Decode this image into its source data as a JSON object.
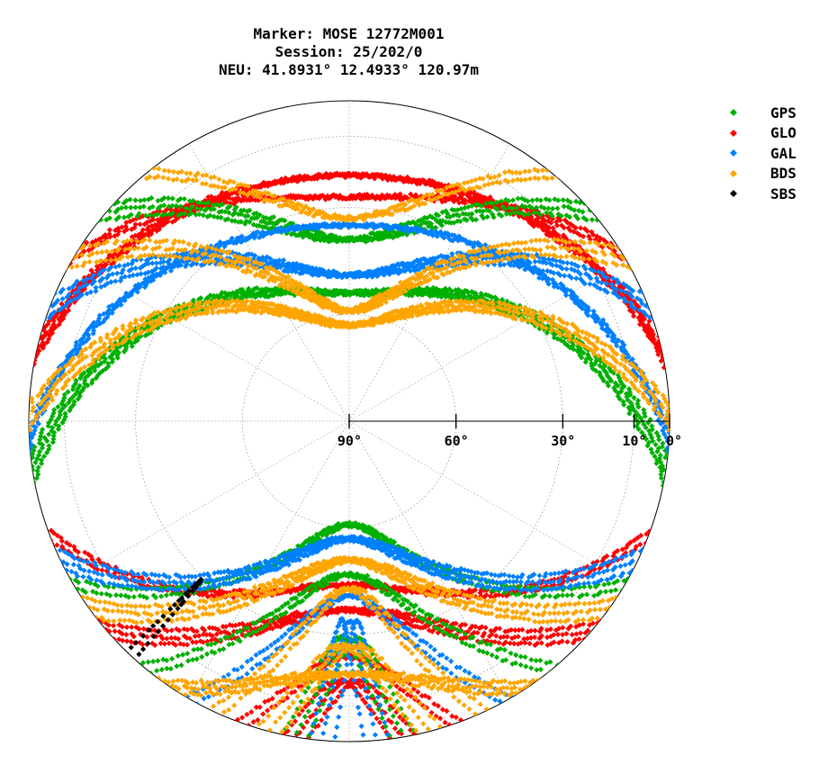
{
  "title": {
    "line1": "Marker: MOSE 12772M001",
    "line2": "Session: 25/202/0",
    "line3": "NEU: 41.8931° 12.4933° 120.97m"
  },
  "legend": [
    {
      "label": "GPS",
      "color": "#00b000",
      "icon": "diamond-marker"
    },
    {
      "label": "GLO",
      "color": "#ff0000",
      "icon": "diamond-marker"
    },
    {
      "label": "GAL",
      "color": "#0080ff",
      "icon": "diamond-marker"
    },
    {
      "label": "BDS",
      "color": "#ffa500",
      "icon": "diamond-marker"
    },
    {
      "label": "SBS",
      "color": "#000000",
      "icon": "diamond-marker"
    }
  ],
  "chart_data": {
    "type": "scatter",
    "projection": "polar skyplot (azimuth / elevation)",
    "elevation_ticks": [
      {
        "value": 90,
        "label": "90°"
      },
      {
        "value": 60,
        "label": "60°"
      },
      {
        "value": 30,
        "label": "30°"
      },
      {
        "value": 10,
        "label": "10°"
      },
      {
        "value": 0,
        "label": "0°"
      }
    ],
    "grid": true,
    "legend_position": "top-right",
    "series": [
      {
        "name": "GPS",
        "color": "#00b000"
      },
      {
        "name": "GLO",
        "color": "#ff0000"
      },
      {
        "name": "GAL",
        "color": "#0080ff"
      },
      {
        "name": "BDS",
        "color": "#ffa500"
      },
      {
        "name": "SBS",
        "color": "#000000"
      }
    ],
    "tracks": [
      {
        "system": "GLO",
        "az_start": 300,
        "az_end": 60,
        "el_max": 28,
        "spread": 2
      },
      {
        "system": "GLO",
        "az_start": 280,
        "az_end": 80,
        "el_max": 22,
        "spread": 3
      },
      {
        "system": "GLO",
        "az_start": 250,
        "az_end": 110,
        "el_max": 45,
        "spread": 2
      },
      {
        "system": "GLO",
        "az_start": 230,
        "az_end": 130,
        "el_max": 38,
        "spread": 3
      },
      {
        "system": "GLO",
        "az_start": 200,
        "az_end": 160,
        "el_max": 25,
        "spread": 2
      },
      {
        "system": "GLO",
        "az_start": 170,
        "az_end": 190,
        "el_max": 18,
        "spread": 3
      },
      {
        "system": "GPS",
        "az_start": 310,
        "az_end": 50,
        "el_max": 40,
        "spread": 3
      },
      {
        "system": "GPS",
        "az_start": 260,
        "az_end": 100,
        "el_max": 55,
        "spread": 3
      },
      {
        "system": "GPS",
        "az_start": 220,
        "az_end": 140,
        "el_max": 48,
        "spread": 2
      },
      {
        "system": "GPS",
        "az_start": 190,
        "az_end": 170,
        "el_max": 30,
        "spread": 3
      },
      {
        "system": "GPS",
        "az_start": 240,
        "az_end": 120,
        "el_max": 62,
        "spread": 2
      },
      {
        "system": "GAL",
        "az_start": 290,
        "az_end": 70,
        "el_max": 50,
        "spread": 3
      },
      {
        "system": "GAL",
        "az_start": 245,
        "az_end": 115,
        "el_max": 58,
        "spread": 3
      },
      {
        "system": "GAL",
        "az_start": 210,
        "az_end": 150,
        "el_max": 42,
        "spread": 2
      },
      {
        "system": "GAL",
        "az_start": 185,
        "az_end": 175,
        "el_max": 35,
        "spread": 3
      },
      {
        "system": "GAL",
        "az_start": 265,
        "az_end": 95,
        "el_max": 36,
        "spread": 2
      },
      {
        "system": "BDS",
        "az_start": 300,
        "az_end": 60,
        "el_max": 60,
        "spread": 3
      },
      {
        "system": "BDS",
        "az_start": 270,
        "az_end": 90,
        "el_max": 64,
        "spread": 3
      },
      {
        "system": "BDS",
        "az_start": 235,
        "az_end": 125,
        "el_max": 52,
        "spread": 3
      },
      {
        "system": "BDS",
        "az_start": 205,
        "az_end": 155,
        "el_max": 44,
        "spread": 2
      },
      {
        "system": "BDS",
        "az_start": 195,
        "az_end": 165,
        "el_max": 28,
        "spread": 3
      },
      {
        "system": "BDS",
        "az_start": 320,
        "az_end": 40,
        "el_max": 34,
        "spread": 2
      },
      {
        "system": "BDS",
        "az_start": 215,
        "az_end": 145,
        "el_max": 20,
        "spread": 3
      },
      {
        "system": "SBS",
        "az_start": 222,
        "az_end": 224,
        "el_max": 30,
        "spread": 1
      }
    ]
  }
}
